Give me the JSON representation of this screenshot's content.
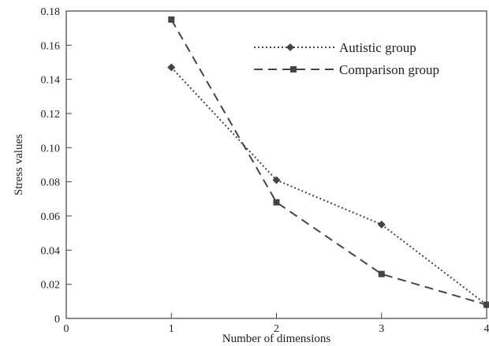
{
  "chart_data": {
    "type": "line",
    "xlabel": "Number of dimensions",
    "ylabel": "Stress values",
    "xlim": [
      0,
      4
    ],
    "ylim": [
      0,
      0.18
    ],
    "x_ticks": [
      "0",
      "1",
      "2",
      "3",
      "4"
    ],
    "y_ticks": [
      "0",
      "0.02",
      "0.04",
      "0.06",
      "0.08",
      "0.10",
      "0.12",
      "0.14",
      "0.16",
      "0.18"
    ],
    "grid": false,
    "legend_position": "top-right",
    "series": [
      {
        "name": "Autistic group",
        "marker": "diamond",
        "line_style": "dotted",
        "x": [
          1,
          2,
          3,
          4
        ],
        "y": [
          0.147,
          0.081,
          0.055,
          0.008
        ]
      },
      {
        "name": "Comparison group",
        "marker": "square",
        "line_style": "dashed",
        "x": [
          1,
          2,
          3,
          4
        ],
        "y": [
          0.175,
          0.068,
          0.026,
          0.008
        ]
      }
    ]
  }
}
